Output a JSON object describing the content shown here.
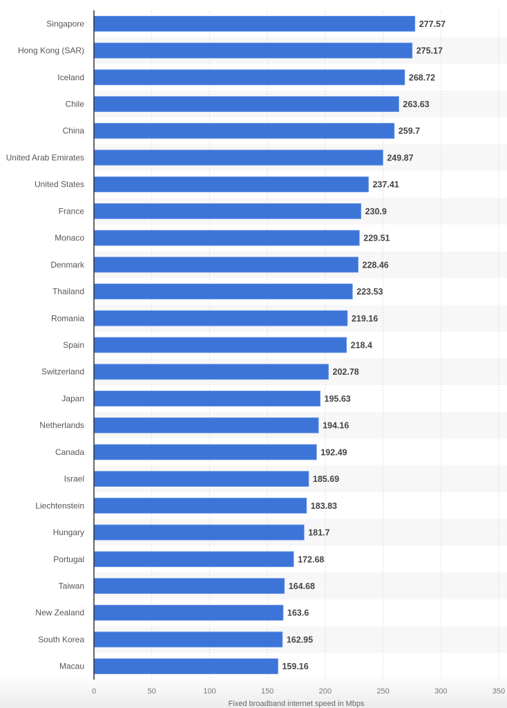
{
  "chart_data": {
    "type": "bar",
    "orientation": "horizontal",
    "title": "",
    "xlabel": "Fixed broadband internet speed in Mbps",
    "ylabel": "",
    "xlim": [
      0,
      350
    ],
    "xticks": [
      "0",
      "50",
      "100",
      "150",
      "200",
      "250",
      "300",
      "350"
    ],
    "grid": true,
    "bar_color": "#3d74d8",
    "categories": [
      "Singapore",
      "Hong Kong (SAR)",
      "Iceland",
      "Chile",
      "China",
      "United Arab Emirates",
      "United States",
      "France",
      "Monaco",
      "Denmark",
      "Thailand",
      "Romania",
      "Spain",
      "Switzerland",
      "Japan",
      "Netherlands",
      "Canada",
      "Israel",
      "Liechtenstein",
      "Hungary",
      "Portugal",
      "Taiwan",
      "New Zealand",
      "South Korea",
      "Macau"
    ],
    "values": [
      277.57,
      275.17,
      268.72,
      263.63,
      259.7,
      249.87,
      237.41,
      230.9,
      229.51,
      228.46,
      223.53,
      219.16,
      218.4,
      202.78,
      195.63,
      194.16,
      192.49,
      185.69,
      183.83,
      181.7,
      172.68,
      164.68,
      163.6,
      162.95,
      159.16
    ]
  }
}
